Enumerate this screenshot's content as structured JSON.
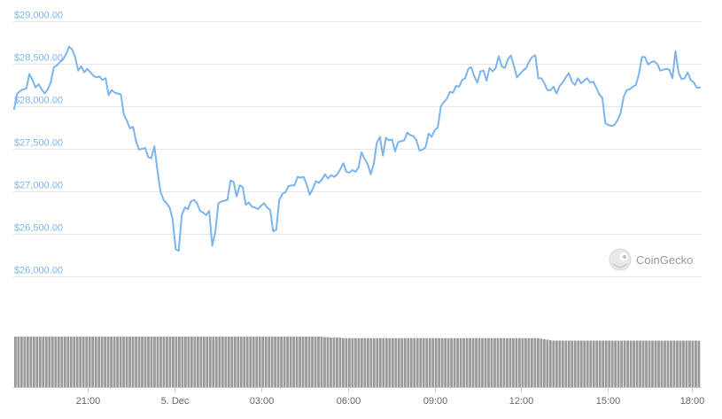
{
  "chart_data": [
    {
      "type": "line",
      "title": "",
      "xlabel": "",
      "ylabel": "",
      "y_ticks": [
        26000,
        26500,
        27000,
        27500,
        28000,
        28500,
        29000
      ],
      "y_tick_labels": [
        "$26,000.00",
        "$26,500.00",
        "$27,000.00",
        "$27,500.00",
        "$28,000.00",
        "$28,500.00",
        "$29,000.00"
      ],
      "ylim": [
        26000,
        29000
      ],
      "x_tick_labels": [
        "21:00",
        "5. Dec",
        "03:00",
        "06:00",
        "09:00",
        "12:00",
        "15:00",
        "18:00"
      ],
      "grid": true,
      "legend": "none",
      "line_color": "#7cb5ec",
      "series": [
        {
          "values": [
            27970,
            28150,
            28180,
            28200,
            28210,
            28380,
            28310,
            28220,
            28260,
            28200,
            28150,
            28200,
            28280,
            28460,
            28480,
            28520,
            28550,
            28610,
            28700,
            28670,
            28580,
            28420,
            28470,
            28400,
            28440,
            28400,
            28360,
            28340,
            28350,
            28310,
            28330,
            28130,
            28190,
            28160,
            28150,
            28140,
            27900,
            27830,
            27740,
            27760,
            27590,
            27490,
            27500,
            27510,
            27400,
            27390,
            27530,
            27250,
            27000,
            26900,
            26860,
            26810,
            26670,
            26320,
            26300,
            26720,
            26810,
            26790,
            26880,
            26900,
            26860,
            26770,
            26750,
            26720,
            26770,
            26360,
            26520,
            26860,
            26880,
            26890,
            26900,
            27130,
            27110,
            26940,
            27070,
            27050,
            26840,
            26870,
            26820,
            26810,
            26790,
            26830,
            26860,
            26810,
            26780,
            26530,
            26550,
            26900,
            26970,
            26990,
            27060,
            27070,
            27070,
            27170,
            27160,
            27170,
            27080,
            26960,
            27030,
            27120,
            27100,
            27140,
            27200,
            27150,
            27190,
            27170,
            27200,
            27260,
            27330,
            27230,
            27220,
            27250,
            27230,
            27280,
            27460,
            27380,
            27320,
            27200,
            27320,
            27570,
            27640,
            27420,
            27630,
            27600,
            27610,
            27470,
            27580,
            27590,
            27600,
            27690,
            27660,
            27650,
            27600,
            27480,
            27490,
            27520,
            27680,
            27640,
            27720,
            27750,
            28000,
            28050,
            28090,
            28170,
            28160,
            28240,
            28230,
            28310,
            28330,
            28440,
            28460,
            28350,
            28280,
            28410,
            28420,
            28300,
            28450,
            28410,
            28450,
            28590,
            28470,
            28450,
            28550,
            28600,
            28470,
            28340,
            28380,
            28420,
            28450,
            28530,
            28580,
            28600,
            28330,
            28330,
            28270,
            28190,
            28190,
            28230,
            28150,
            28240,
            28280,
            28340,
            28390,
            28290,
            28250,
            28330,
            28270,
            28300,
            28330,
            28280,
            28290,
            28220,
            28140,
            28100,
            27800,
            27780,
            27770,
            27780,
            27840,
            27920,
            28110,
            28190,
            28200,
            28230,
            28250,
            28380,
            28580,
            28580,
            28490,
            28520,
            28530,
            28500,
            28420,
            28430,
            28440,
            28430,
            28330,
            28650,
            28400,
            28320,
            28330,
            28400,
            28310,
            28280,
            28220,
            28220
          ]
        }
      ],
      "volume": {
        "bar_color": "#999999",
        "values": [
          1,
          1,
          1,
          1,
          1,
          1,
          1,
          1,
          1,
          1,
          1,
          1,
          1,
          1,
          1,
          1,
          1,
          1,
          1,
          1,
          1,
          1,
          1,
          1,
          1,
          1,
          1,
          1,
          1,
          1,
          1,
          1,
          1,
          1,
          1,
          1,
          1,
          1,
          1,
          1,
          1,
          1,
          1,
          1,
          1,
          1,
          1,
          1,
          1,
          1,
          1,
          1,
          1,
          1,
          1,
          1,
          1,
          1,
          1,
          1,
          1,
          1,
          1,
          1,
          1,
          1,
          1,
          1,
          1,
          1,
          1,
          1,
          1,
          1,
          1,
          1,
          1,
          1,
          1,
          1,
          1,
          1,
          1,
          1,
          1,
          1,
          1,
          1,
          1,
          1,
          1,
          1,
          1,
          1,
          1,
          1,
          1,
          1,
          1,
          1,
          0.99,
          0.99,
          0.98,
          0.98,
          0.98,
          0.98,
          0.97,
          0.97,
          0.97,
          0.97,
          0.97,
          0.97,
          0.97,
          0.97,
          0.97,
          0.97,
          0.97,
          0.97,
          0.97,
          0.97,
          0.97,
          0.97,
          0.97,
          0.97,
          0.97,
          0.97,
          0.97,
          0.97,
          0.97,
          0.97,
          0.97,
          0.97,
          0.97,
          0.97,
          0.97,
          0.97,
          0.97,
          0.97,
          0.97,
          0.97,
          0.97,
          0.97,
          0.97,
          0.97,
          0.97,
          0.97,
          0.97,
          0.97,
          0.97,
          0.97,
          0.97,
          0.97,
          0.97,
          0.97,
          0.97,
          0.97,
          0.97,
          0.97,
          0.97,
          0.97,
          0.97,
          0.97,
          0.97,
          0.97,
          0.97,
          0.97,
          0.97,
          0.97,
          0.97,
          0.97,
          0.96,
          0.95,
          0.94,
          0.93,
          0.92,
          0.92,
          0.92,
          0.92,
          0.92,
          0.92,
          0.92,
          0.92,
          0.92,
          0.92,
          0.92,
          0.92,
          0.92,
          0.92,
          0.92,
          0.92,
          0.92,
          0.92,
          0.92,
          0.92,
          0.92,
          0.92,
          0.92,
          0.92,
          0.92,
          0.92,
          0.92,
          0.92,
          0.92,
          0.92,
          0.92,
          0.92,
          0.92,
          0.92,
          0.92,
          0.92,
          0.92,
          0.92,
          0.92,
          0.92,
          0.92,
          0.92,
          0.92,
          0.92,
          0.92,
          0.92,
          0.92,
          0.92
        ]
      }
    }
  ],
  "watermark": {
    "text": "CoinGecko",
    "icon": "gecko-logo-icon"
  },
  "colors": {
    "line": "#7cb5ec",
    "grid": "#e6e6e6",
    "y_label": "#7cb5ec",
    "x_label": "#666666",
    "volume_bar": "#999999",
    "watermark": "#999999"
  }
}
